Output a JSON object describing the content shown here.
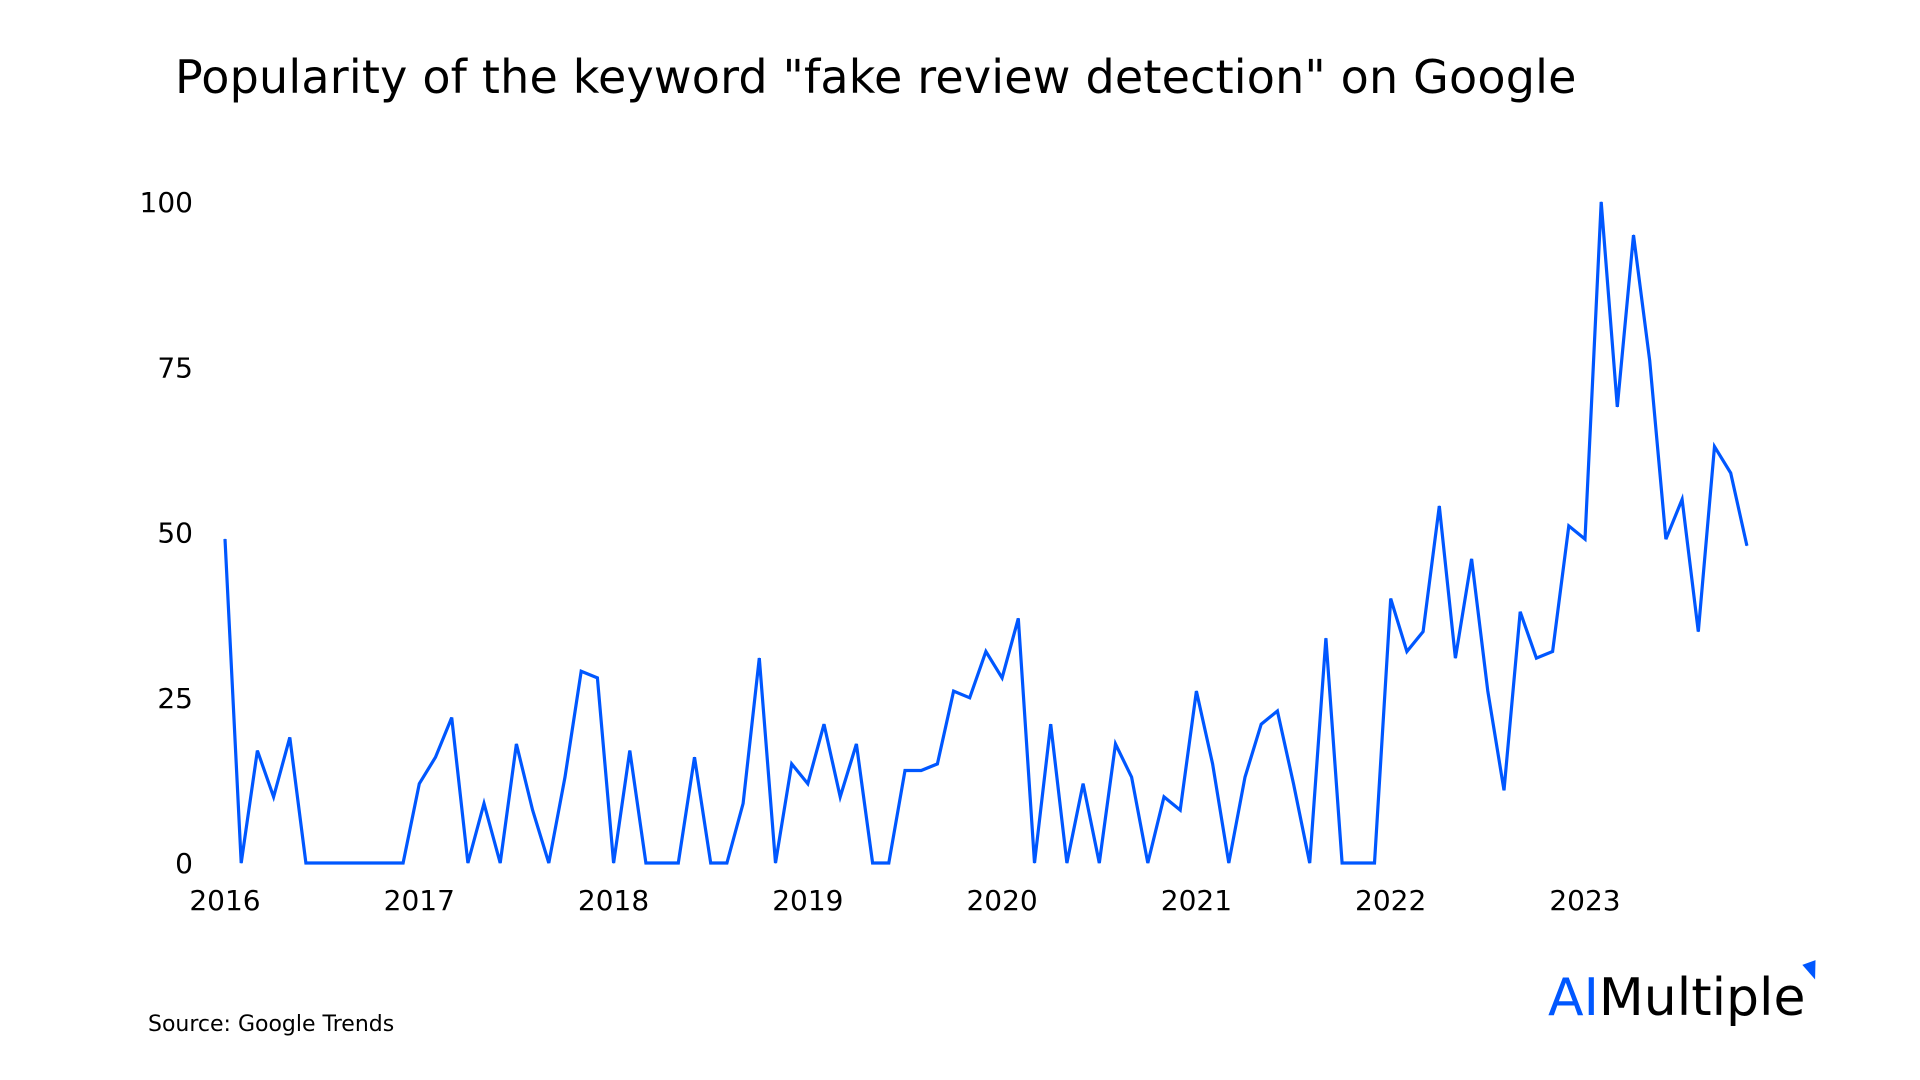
{
  "chart_data": {
    "type": "line",
    "title": "Popularity of the keyword \"fake review detection\" on Google",
    "xlabel": "",
    "ylabel": "",
    "ylim": [
      0,
      100
    ],
    "yticks": [
      "0",
      "25",
      "50",
      "75",
      "100"
    ],
    "xticks": [
      "2016",
      "2017",
      "2018",
      "2019",
      "2020",
      "2021",
      "2022",
      "2023"
    ],
    "x_start": "2016-01",
    "x_frequency": "monthly",
    "grid": false,
    "line_color": "#0057ff",
    "series": [
      {
        "values": [
          49,
          0,
          17,
          10,
          19,
          0,
          0,
          0,
          0,
          0,
          0,
          0,
          12,
          16,
          22,
          0,
          9,
          0,
          18,
          8,
          0,
          13,
          29,
          28,
          0,
          17,
          0,
          0,
          0,
          16,
          0,
          0,
          9,
          31,
          0,
          15,
          12,
          21,
          10,
          18,
          0,
          0,
          14,
          14,
          15,
          26,
          25,
          32,
          28,
          37,
          0,
          21,
          0,
          12,
          0,
          18,
          13,
          0,
          10,
          8,
          26,
          15,
          0,
          13,
          21,
          23,
          12,
          0,
          34,
          0,
          0,
          0,
          40,
          32,
          35,
          54,
          31,
          46,
          26,
          11,
          38,
          31,
          32,
          51,
          49,
          100,
          69,
          95,
          76,
          49,
          55,
          35,
          63,
          59,
          48
        ]
      }
    ]
  },
  "source": "Source: Google Trends",
  "logo": {
    "ai": "AI",
    "rest": "Multiple"
  }
}
